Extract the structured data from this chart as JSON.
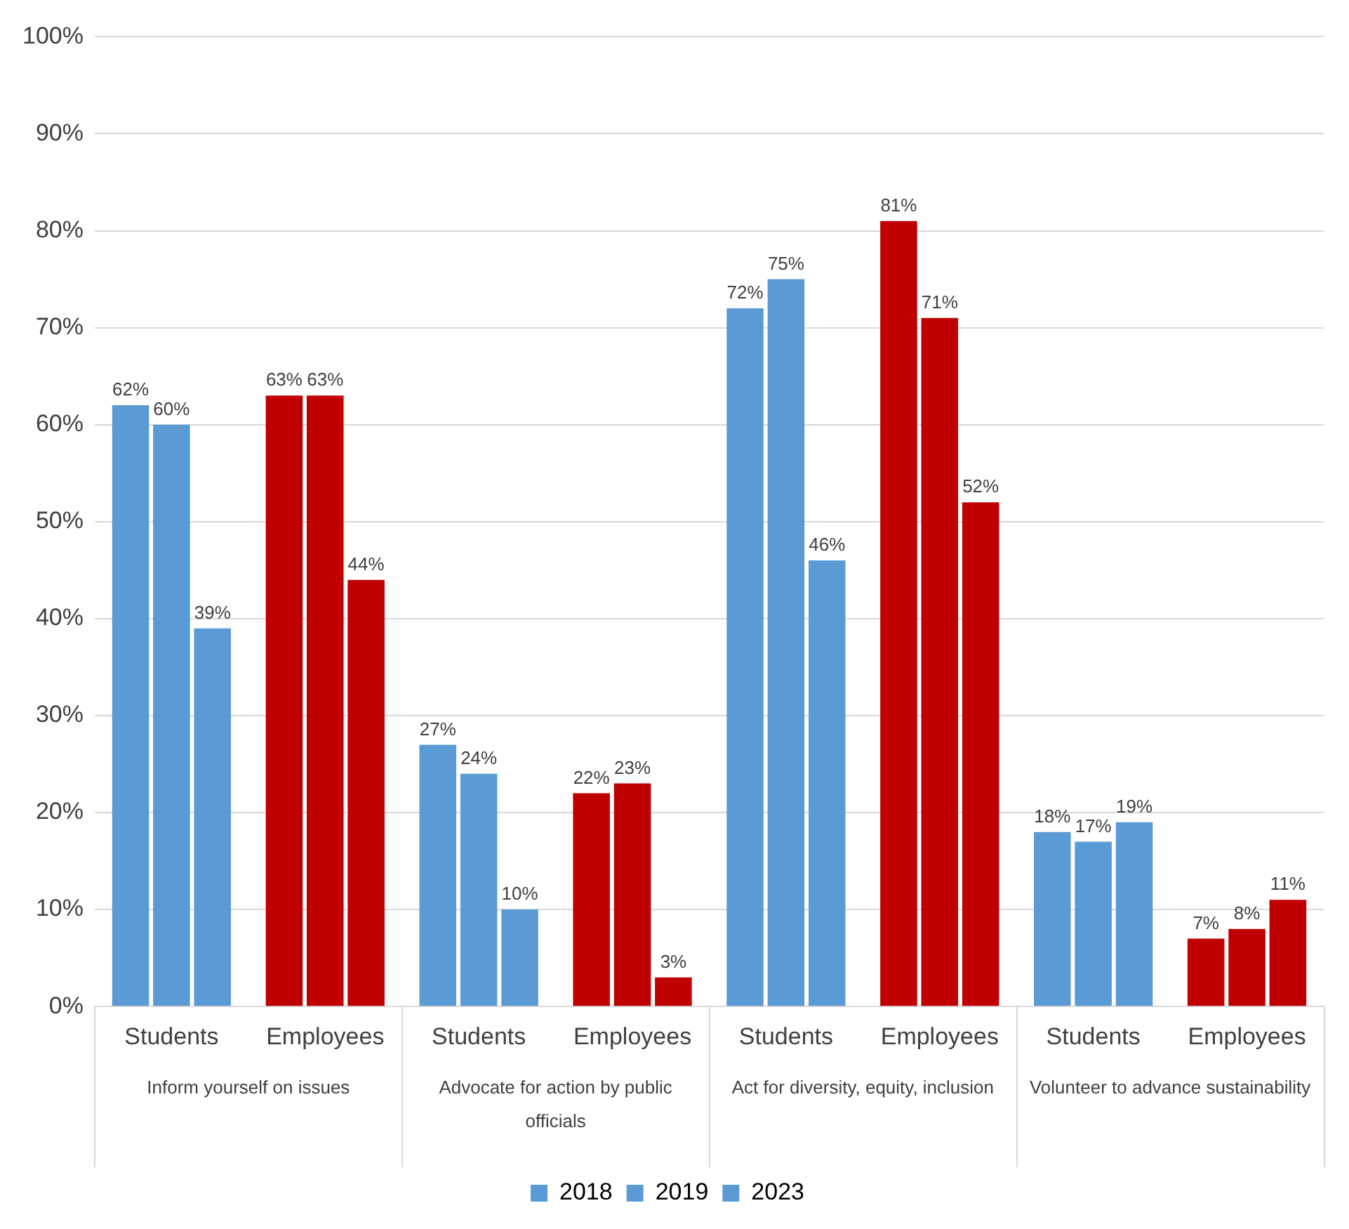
{
  "chart_data": {
    "type": "bar",
    "categories": [
      "Students",
      "Employees",
      "Students",
      "Employees",
      "Students",
      "Employees",
      "Students",
      "Employees"
    ],
    "annotations": [
      "Inform yourself on issues",
      "Advocate for action by public officials",
      "Act for diversity, equity, inclusion",
      "Volunteer to advance sustainability"
    ],
    "series": [
      {
        "name": "2018",
        "color": "#5b9bd5",
        "colors": [
          "#5b9bd5",
          "#c00000",
          "#5b9bd5",
          "#c00000",
          "#5b9bd5",
          "#c00000",
          "#5b9bd5",
          "#c00000"
        ],
        "values": [
          62,
          63,
          27,
          22,
          72,
          81,
          18,
          7
        ],
        "value_labels": [
          "62%",
          "63%",
          "27%",
          "22%",
          "72%",
          "81%",
          "18%",
          "7%"
        ]
      },
      {
        "name": "2019",
        "color": "#5b9bd5",
        "colors": [
          "#5b9bd5",
          "#c00000",
          "#5b9bd5",
          "#c00000",
          "#5b9bd5",
          "#c00000",
          "#5b9bd5",
          "#c00000"
        ],
        "values": [
          60,
          63,
          24,
          23,
          75,
          71,
          17,
          8
        ],
        "value_labels": [
          "60%",
          "63%",
          "24%",
          "23%",
          "75%",
          "71%",
          "17%",
          "8%"
        ]
      },
      {
        "name": "2023",
        "color": "#5b9bd5",
        "colors": [
          "#5b9bd5",
          "#c00000",
          "#5b9bd5",
          "#c00000",
          "#5b9bd5",
          "#c00000",
          "#5b9bd5",
          "#c00000"
        ],
        "values": [
          39,
          44,
          10,
          3,
          46,
          52,
          19,
          11
        ],
        "value_labels": [
          "39%",
          "44%",
          "10%",
          "3%",
          "46%",
          "52%",
          "19%",
          "11%"
        ]
      }
    ],
    "ylim": [
      0,
      100
    ],
    "yticks": [
      {
        "value": 0,
        "label": "0%"
      },
      {
        "value": 10,
        "label": "10%"
      },
      {
        "value": 20,
        "label": "20%"
      },
      {
        "value": 30,
        "label": "30%"
      },
      {
        "value": 40,
        "label": "40%"
      },
      {
        "value": 50,
        "label": "50%"
      },
      {
        "value": 60,
        "label": "60%"
      },
      {
        "value": 70,
        "label": "70%"
      },
      {
        "value": 80,
        "label": "80%"
      },
      {
        "value": 90,
        "label": "90%"
      },
      {
        "value": 100,
        "label": "100%"
      }
    ],
    "grid": "y",
    "legend": "bottom"
  }
}
